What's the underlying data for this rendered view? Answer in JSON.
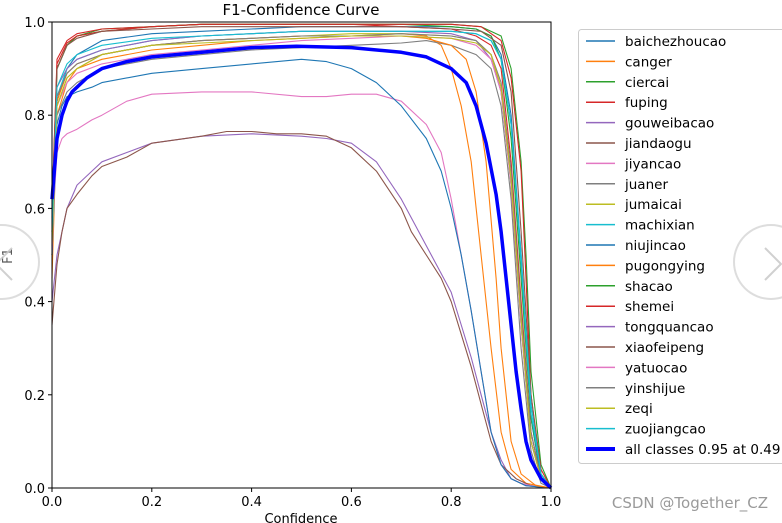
{
  "chart_data": {
    "type": "line",
    "title": "F1-Confidence Curve",
    "xlabel": "Confidence",
    "ylabel": "F1",
    "xlim": [
      0,
      1
    ],
    "ylim": [
      0,
      1
    ],
    "xticks": [
      "0.0",
      "0.2",
      "0.4",
      "0.6",
      "0.8",
      "1.0"
    ],
    "yticks": [
      "0.0",
      "0.2",
      "0.4",
      "0.6",
      "0.8",
      "1.0"
    ],
    "legend_position": "outside-right",
    "series": [
      {
        "name": "baichezhoucao",
        "color": "#1f77b4",
        "x": [
          0,
          0.01,
          0.03,
          0.05,
          0.1,
          0.2,
          0.3,
          0.4,
          0.5,
          0.6,
          0.7,
          0.8,
          0.85,
          0.88,
          0.9,
          0.92,
          0.94,
          0.96,
          0.98,
          1.0
        ],
        "y": [
          0.5,
          0.83,
          0.9,
          0.93,
          0.96,
          0.975,
          0.98,
          0.985,
          0.99,
          0.99,
          0.99,
          0.99,
          0.985,
          0.97,
          0.93,
          0.8,
          0.5,
          0.15,
          0.02,
          0
        ]
      },
      {
        "name": "canger",
        "color": "#ff7f0e",
        "x": [
          0,
          0.01,
          0.03,
          0.05,
          0.1,
          0.2,
          0.3,
          0.4,
          0.5,
          0.6,
          0.7,
          0.75,
          0.78,
          0.8,
          0.82,
          0.84,
          0.86,
          0.88,
          0.9,
          0.92,
          0.95,
          1.0
        ],
        "y": [
          0.45,
          0.8,
          0.87,
          0.9,
          0.92,
          0.94,
          0.95,
          0.96,
          0.965,
          0.97,
          0.975,
          0.97,
          0.95,
          0.9,
          0.82,
          0.7,
          0.5,
          0.3,
          0.12,
          0.04,
          0.01,
          0
        ]
      },
      {
        "name": "ciercai",
        "color": "#2ca02c",
        "x": [
          0,
          0.01,
          0.03,
          0.05,
          0.1,
          0.2,
          0.3,
          0.4,
          0.5,
          0.6,
          0.7,
          0.8,
          0.85,
          0.88,
          0.9,
          0.92,
          0.94,
          0.96,
          0.98,
          1.0
        ],
        "y": [
          0.55,
          0.9,
          0.95,
          0.97,
          0.985,
          0.99,
          0.995,
          0.995,
          0.995,
          0.995,
          0.995,
          0.99,
          0.985,
          0.97,
          0.92,
          0.75,
          0.45,
          0.15,
          0.03,
          0
        ]
      },
      {
        "name": "fuping",
        "color": "#d62728",
        "x": [
          0,
          0.01,
          0.03,
          0.05,
          0.1,
          0.2,
          0.3,
          0.4,
          0.5,
          0.6,
          0.7,
          0.8,
          0.85,
          0.88,
          0.9,
          0.92,
          0.94,
          0.96,
          0.98,
          1.0
        ],
        "y": [
          0.6,
          0.92,
          0.96,
          0.975,
          0.985,
          0.99,
          0.995,
          0.995,
          0.995,
          0.995,
          0.99,
          0.985,
          0.97,
          0.95,
          0.9,
          0.7,
          0.4,
          0.12,
          0.02,
          0
        ]
      },
      {
        "name": "gouweibacao",
        "color": "#9467bd",
        "x": [
          0,
          0.01,
          0.02,
          0.03,
          0.05,
          0.08,
          0.1,
          0.15,
          0.2,
          0.3,
          0.4,
          0.5,
          0.55,
          0.6,
          0.65,
          0.7,
          0.75,
          0.8,
          0.82,
          0.84,
          0.86,
          0.88,
          0.9,
          0.92,
          0.95,
          1.0
        ],
        "y": [
          0.4,
          0.5,
          0.55,
          0.6,
          0.65,
          0.68,
          0.7,
          0.72,
          0.74,
          0.755,
          0.76,
          0.755,
          0.75,
          0.74,
          0.7,
          0.62,
          0.52,
          0.42,
          0.35,
          0.28,
          0.2,
          0.12,
          0.06,
          0.02,
          0.005,
          0
        ]
      },
      {
        "name": "jiandaogu",
        "color": "#8c564b",
        "x": [
          0,
          0.01,
          0.02,
          0.03,
          0.05,
          0.08,
          0.1,
          0.15,
          0.2,
          0.3,
          0.35,
          0.4,
          0.45,
          0.5,
          0.55,
          0.6,
          0.65,
          0.7,
          0.72,
          0.75,
          0.78,
          0.8,
          0.82,
          0.84,
          0.86,
          0.88,
          0.9,
          0.93,
          0.96,
          1.0
        ],
        "y": [
          0.35,
          0.48,
          0.55,
          0.6,
          0.63,
          0.67,
          0.69,
          0.71,
          0.74,
          0.755,
          0.765,
          0.765,
          0.76,
          0.76,
          0.755,
          0.73,
          0.68,
          0.6,
          0.55,
          0.5,
          0.45,
          0.4,
          0.33,
          0.26,
          0.18,
          0.1,
          0.05,
          0.02,
          0.005,
          0
        ]
      },
      {
        "name": "jiyancao",
        "color": "#e377c2",
        "x": [
          0,
          0.01,
          0.02,
          0.03,
          0.05,
          0.08,
          0.1,
          0.15,
          0.2,
          0.3,
          0.4,
          0.5,
          0.55,
          0.6,
          0.65,
          0.7,
          0.75,
          0.78,
          0.8,
          0.82,
          0.84,
          0.86,
          0.88,
          0.9,
          0.92,
          0.94,
          0.96,
          1.0
        ],
        "y": [
          0.55,
          0.72,
          0.75,
          0.76,
          0.77,
          0.79,
          0.8,
          0.83,
          0.845,
          0.85,
          0.85,
          0.84,
          0.84,
          0.845,
          0.845,
          0.83,
          0.78,
          0.72,
          0.62,
          0.5,
          0.38,
          0.25,
          0.12,
          0.05,
          0.02,
          0.01,
          0.005,
          0
        ]
      },
      {
        "name": "juaner",
        "color": "#7f7f7f",
        "x": [
          0,
          0.01,
          0.03,
          0.05,
          0.1,
          0.2,
          0.3,
          0.4,
          0.5,
          0.6,
          0.7,
          0.75,
          0.8,
          0.85,
          0.88,
          0.9,
          0.92,
          0.94,
          0.96,
          0.98,
          1.0
        ],
        "y": [
          0.5,
          0.8,
          0.85,
          0.87,
          0.9,
          0.92,
          0.93,
          0.94,
          0.945,
          0.95,
          0.955,
          0.96,
          0.95,
          0.93,
          0.9,
          0.82,
          0.62,
          0.3,
          0.08,
          0.01,
          0
        ]
      },
      {
        "name": "jumaicai",
        "color": "#bcbd22",
        "x": [
          0,
          0.01,
          0.03,
          0.05,
          0.1,
          0.2,
          0.3,
          0.4,
          0.5,
          0.6,
          0.7,
          0.8,
          0.85,
          0.88,
          0.9,
          0.92,
          0.94,
          0.96,
          0.98,
          1.0
        ],
        "y": [
          0.5,
          0.82,
          0.88,
          0.9,
          0.93,
          0.95,
          0.96,
          0.965,
          0.97,
          0.975,
          0.975,
          0.97,
          0.96,
          0.93,
          0.85,
          0.65,
          0.35,
          0.1,
          0.02,
          0
        ]
      },
      {
        "name": "machixian",
        "color": "#17becf",
        "x": [
          0,
          0.01,
          0.03,
          0.05,
          0.1,
          0.2,
          0.3,
          0.4,
          0.5,
          0.6,
          0.7,
          0.8,
          0.85,
          0.88,
          0.9,
          0.92,
          0.94,
          0.96,
          0.98,
          1.0
        ],
        "y": [
          0.5,
          0.84,
          0.9,
          0.92,
          0.94,
          0.96,
          0.97,
          0.975,
          0.98,
          0.98,
          0.98,
          0.98,
          0.975,
          0.96,
          0.92,
          0.78,
          0.48,
          0.16,
          0.03,
          0
        ]
      },
      {
        "name": "niujincao",
        "color": "#1f77b4",
        "x": [
          0,
          0.01,
          0.02,
          0.03,
          0.05,
          0.08,
          0.1,
          0.2,
          0.3,
          0.4,
          0.5,
          0.55,
          0.6,
          0.65,
          0.7,
          0.75,
          0.78,
          0.8,
          0.82,
          0.84,
          0.86,
          0.88,
          0.9,
          0.92,
          0.95,
          1.0
        ],
        "y": [
          0.5,
          0.78,
          0.82,
          0.84,
          0.85,
          0.86,
          0.87,
          0.89,
          0.9,
          0.91,
          0.92,
          0.915,
          0.9,
          0.87,
          0.82,
          0.75,
          0.68,
          0.6,
          0.5,
          0.38,
          0.25,
          0.12,
          0.05,
          0.02,
          0.005,
          0
        ]
      },
      {
        "name": "pugongying",
        "color": "#ff7f0e",
        "x": [
          0,
          0.01,
          0.03,
          0.05,
          0.1,
          0.2,
          0.3,
          0.4,
          0.5,
          0.6,
          0.7,
          0.75,
          0.8,
          0.83,
          0.85,
          0.87,
          0.89,
          0.9,
          0.92,
          0.94,
          0.97,
          1.0
        ],
        "y": [
          0.55,
          0.83,
          0.89,
          0.91,
          0.93,
          0.95,
          0.96,
          0.965,
          0.97,
          0.97,
          0.97,
          0.965,
          0.95,
          0.92,
          0.85,
          0.7,
          0.45,
          0.3,
          0.1,
          0.03,
          0.005,
          0
        ]
      },
      {
        "name": "shacao",
        "color": "#2ca02c",
        "x": [
          0,
          0.01,
          0.03,
          0.05,
          0.1,
          0.2,
          0.3,
          0.4,
          0.5,
          0.6,
          0.7,
          0.8,
          0.86,
          0.9,
          0.92,
          0.94,
          0.95,
          0.96,
          0.98,
          1.0
        ],
        "y": [
          0.6,
          0.9,
          0.95,
          0.97,
          0.98,
          0.99,
          0.995,
          0.995,
          0.995,
          0.995,
          0.995,
          0.995,
          0.99,
          0.97,
          0.9,
          0.7,
          0.5,
          0.25,
          0.05,
          0
        ]
      },
      {
        "name": "shemei",
        "color": "#d62728",
        "x": [
          0,
          0.01,
          0.03,
          0.05,
          0.1,
          0.2,
          0.3,
          0.4,
          0.5,
          0.6,
          0.7,
          0.8,
          0.86,
          0.9,
          0.92,
          0.94,
          0.95,
          0.96,
          0.98,
          1.0
        ],
        "y": [
          0.6,
          0.91,
          0.955,
          0.97,
          0.98,
          0.99,
          0.995,
          0.995,
          0.995,
          0.995,
          0.995,
          0.995,
          0.99,
          0.96,
          0.88,
          0.68,
          0.45,
          0.2,
          0.04,
          0
        ]
      },
      {
        "name": "tongquancao",
        "color": "#9467bd",
        "x": [
          0,
          0.01,
          0.03,
          0.05,
          0.1,
          0.2,
          0.3,
          0.4,
          0.5,
          0.6,
          0.7,
          0.8,
          0.85,
          0.88,
          0.9,
          0.92,
          0.94,
          0.96,
          0.98,
          1.0
        ],
        "y": [
          0.55,
          0.86,
          0.9,
          0.92,
          0.94,
          0.96,
          0.97,
          0.975,
          0.98,
          0.98,
          0.98,
          0.975,
          0.96,
          0.92,
          0.85,
          0.65,
          0.35,
          0.1,
          0.02,
          0
        ]
      },
      {
        "name": "xiaofeipeng",
        "color": "#8c564b",
        "x": [
          0,
          0.01,
          0.03,
          0.05,
          0.1,
          0.2,
          0.3,
          0.4,
          0.5,
          0.6,
          0.7,
          0.8,
          0.86,
          0.9,
          0.92,
          0.94,
          0.96,
          0.98,
          1.0
        ],
        "y": [
          0.58,
          0.9,
          0.95,
          0.965,
          0.98,
          0.985,
          0.99,
          0.99,
          0.99,
          0.99,
          0.99,
          0.985,
          0.98,
          0.95,
          0.85,
          0.55,
          0.2,
          0.03,
          0
        ]
      },
      {
        "name": "yatuocao",
        "color": "#e377c2",
        "x": [
          0,
          0.01,
          0.03,
          0.05,
          0.1,
          0.2,
          0.3,
          0.4,
          0.5,
          0.6,
          0.7,
          0.8,
          0.85,
          0.88,
          0.9,
          0.92,
          0.94,
          0.96,
          0.98,
          1.0
        ],
        "y": [
          0.5,
          0.82,
          0.87,
          0.89,
          0.91,
          0.93,
          0.94,
          0.95,
          0.96,
          0.965,
          0.97,
          0.965,
          0.95,
          0.92,
          0.85,
          0.65,
          0.35,
          0.1,
          0.02,
          0
        ]
      },
      {
        "name": "yinshijue",
        "color": "#7f7f7f",
        "x": [
          0,
          0.01,
          0.03,
          0.05,
          0.1,
          0.2,
          0.3,
          0.4,
          0.5,
          0.6,
          0.7,
          0.8,
          0.85,
          0.88,
          0.9,
          0.92,
          0.94,
          0.96,
          0.98,
          1.0
        ],
        "y": [
          0.55,
          0.84,
          0.89,
          0.91,
          0.93,
          0.95,
          0.96,
          0.965,
          0.97,
          0.97,
          0.975,
          0.97,
          0.96,
          0.93,
          0.87,
          0.68,
          0.38,
          0.12,
          0.02,
          0
        ]
      },
      {
        "name": "zeqi",
        "color": "#bcbd22",
        "x": [
          0,
          0.01,
          0.03,
          0.05,
          0.1,
          0.2,
          0.3,
          0.4,
          0.5,
          0.6,
          0.7,
          0.8,
          0.85,
          0.88,
          0.9,
          0.92,
          0.94,
          0.96,
          0.98,
          1.0
        ],
        "y": [
          0.52,
          0.82,
          0.88,
          0.9,
          0.93,
          0.95,
          0.955,
          0.96,
          0.965,
          0.97,
          0.97,
          0.965,
          0.955,
          0.93,
          0.86,
          0.66,
          0.36,
          0.1,
          0.02,
          0
        ]
      },
      {
        "name": "zuojiangcao",
        "color": "#17becf",
        "x": [
          0,
          0.01,
          0.03,
          0.05,
          0.1,
          0.2,
          0.3,
          0.4,
          0.5,
          0.6,
          0.7,
          0.8,
          0.85,
          0.88,
          0.9,
          0.92,
          0.94,
          0.96,
          0.98,
          1.0
        ],
        "y": [
          0.55,
          0.86,
          0.91,
          0.93,
          0.95,
          0.965,
          0.97,
          0.975,
          0.98,
          0.98,
          0.98,
          0.98,
          0.975,
          0.96,
          0.92,
          0.78,
          0.5,
          0.18,
          0.03,
          0
        ]
      },
      {
        "name": "all classes 0.95 at 0.49",
        "color": "#0000ff",
        "bold": true,
        "x": [
          0,
          0.01,
          0.02,
          0.03,
          0.04,
          0.05,
          0.07,
          0.1,
          0.15,
          0.2,
          0.3,
          0.4,
          0.49,
          0.6,
          0.7,
          0.75,
          0.8,
          0.83,
          0.85,
          0.87,
          0.89,
          0.9,
          0.91,
          0.92,
          0.93,
          0.94,
          0.95,
          0.96,
          0.98,
          1.0
        ],
        "y": [
          0.62,
          0.75,
          0.8,
          0.83,
          0.85,
          0.86,
          0.88,
          0.9,
          0.915,
          0.925,
          0.935,
          0.945,
          0.948,
          0.945,
          0.935,
          0.925,
          0.9,
          0.87,
          0.82,
          0.74,
          0.63,
          0.55,
          0.45,
          0.35,
          0.25,
          0.17,
          0.1,
          0.06,
          0.02,
          0
        ]
      }
    ]
  },
  "watermark": "CSDN @Together_CZ",
  "nav": {
    "prev_icon": "chevron-left-icon",
    "next_icon": "chevron-right-icon"
  }
}
